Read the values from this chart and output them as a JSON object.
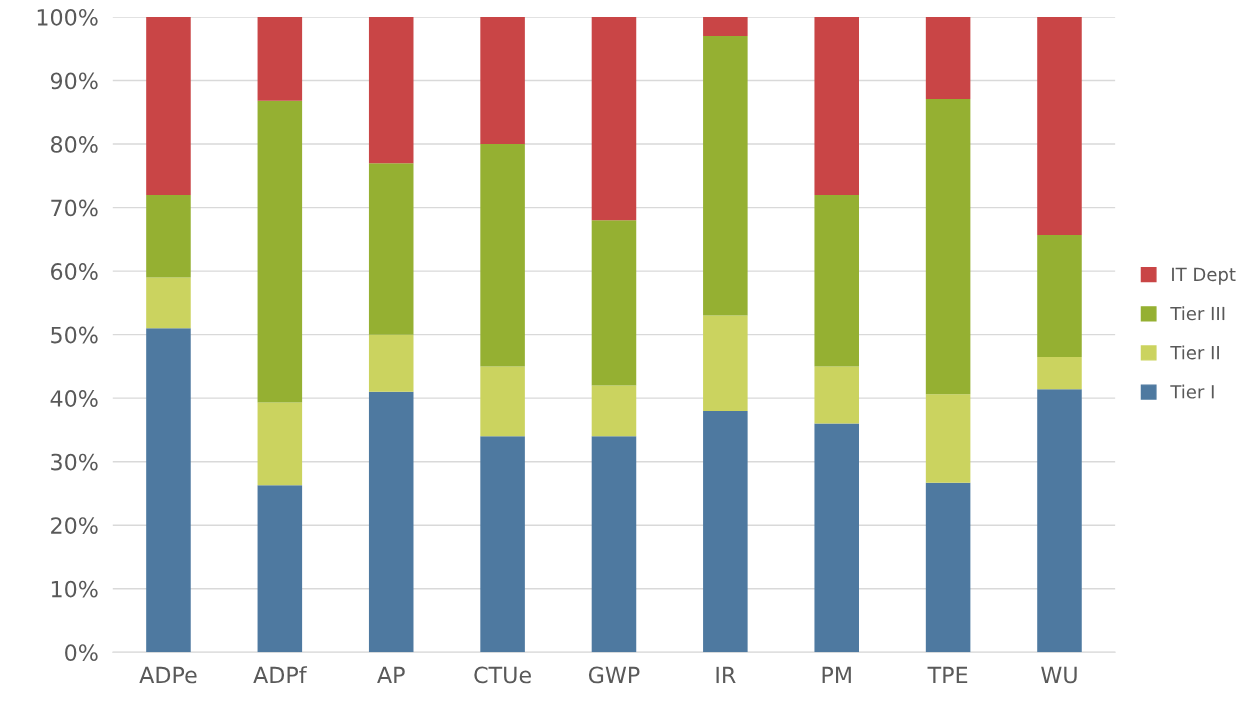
{
  "chart_data": {
    "type": "bar",
    "stacked": true,
    "categories": [
      "ADPe",
      "ADPf",
      "AP",
      "CTUe",
      "GWP",
      "IR",
      "PM",
      "TPE",
      "WU"
    ],
    "series": [
      {
        "name": "Tier I",
        "color": "#4e79a0",
        "values": [
          51,
          26.3,
          41,
          34,
          34,
          38,
          36,
          26.7,
          41.4
        ]
      },
      {
        "name": "Tier II",
        "color": "#cbd35f",
        "values": [
          8,
          13,
          9,
          11,
          8,
          15,
          9,
          13.9,
          5.1
        ]
      },
      {
        "name": "Tier III",
        "color": "#95b032",
        "values": [
          13,
          47.5,
          27,
          35,
          26,
          44,
          27,
          46.5,
          19.2
        ]
      },
      {
        "name": "IT Dept",
        "color": "#c94546",
        "values": [
          28,
          13.2,
          23,
          20,
          32,
          3,
          28,
          12.9,
          34.3
        ]
      }
    ],
    "ylim": [
      0,
      100
    ],
    "yticks": [
      {
        "value": 0,
        "label": "0%"
      },
      {
        "value": 10,
        "label": "10%"
      },
      {
        "value": 20,
        "label": "20%"
      },
      {
        "value": 30,
        "label": "30%"
      },
      {
        "value": 40,
        "label": "40%"
      },
      {
        "value": 50,
        "label": "50%"
      },
      {
        "value": 60,
        "label": "60%"
      },
      {
        "value": 70,
        "label": "70%"
      },
      {
        "value": 80,
        "label": "80%"
      },
      {
        "value": 90,
        "label": "90%"
      },
      {
        "value": 100,
        "label": "100%"
      }
    ],
    "grid": "y",
    "legend": "right"
  }
}
